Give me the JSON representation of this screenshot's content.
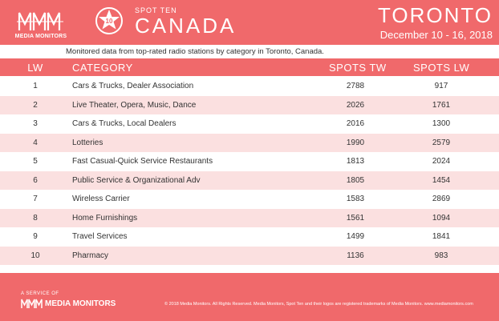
{
  "header": {
    "logo_text": "MEDIA MONITORS",
    "badge_number": "10",
    "spot_ten_label": "SPOT TEN",
    "country": "CANADA",
    "city": "TORONTO",
    "date_range": "December 10 - 16, 2018"
  },
  "subtitle": "Monitored data from top-rated radio stations by category in Toronto, Canada.",
  "table": {
    "columns": [
      "LW",
      "CATEGORY",
      "SPOTS TW",
      "SPOTS LW"
    ],
    "rows": [
      {
        "lw": "1",
        "category": "Cars & Trucks, Dealer Association",
        "spots_tw": "2788",
        "spots_lw": "917"
      },
      {
        "lw": "2",
        "category": "Live Theater, Opera, Music, Dance",
        "spots_tw": "2026",
        "spots_lw": "1761"
      },
      {
        "lw": "3",
        "category": "Cars & Trucks, Local Dealers",
        "spots_tw": "2016",
        "spots_lw": "1300"
      },
      {
        "lw": "4",
        "category": "Lotteries",
        "spots_tw": "1990",
        "spots_lw": "2579"
      },
      {
        "lw": "5",
        "category": "Fast Casual-Quick Service Restaurants",
        "spots_tw": "1813",
        "spots_lw": "2024"
      },
      {
        "lw": "6",
        "category": "Public Service & Organizational Adv",
        "spots_tw": "1805",
        "spots_lw": "1454"
      },
      {
        "lw": "7",
        "category": "Wireless Carrier",
        "spots_tw": "1583",
        "spots_lw": "2869"
      },
      {
        "lw": "8",
        "category": "Home Furnishings",
        "spots_tw": "1561",
        "spots_lw": "1094"
      },
      {
        "lw": "9",
        "category": "Travel Services",
        "spots_tw": "1499",
        "spots_lw": "1841"
      },
      {
        "lw": "10",
        "category": "Pharmacy",
        "spots_tw": "1136",
        "spots_lw": "983"
      }
    ]
  },
  "footer": {
    "service_label": "A SERVICE OF",
    "brand": "MEDIA MONITORS",
    "legal": "© 2018 Media Monitors. All Rights Reserved. Media Monitors, Spot Ten and their logos are registered trademarks of Media Monitors. www.mediamonitors.com"
  },
  "colors": {
    "brand_red": "#f0696b",
    "row_alt": "#fbe0e0"
  }
}
